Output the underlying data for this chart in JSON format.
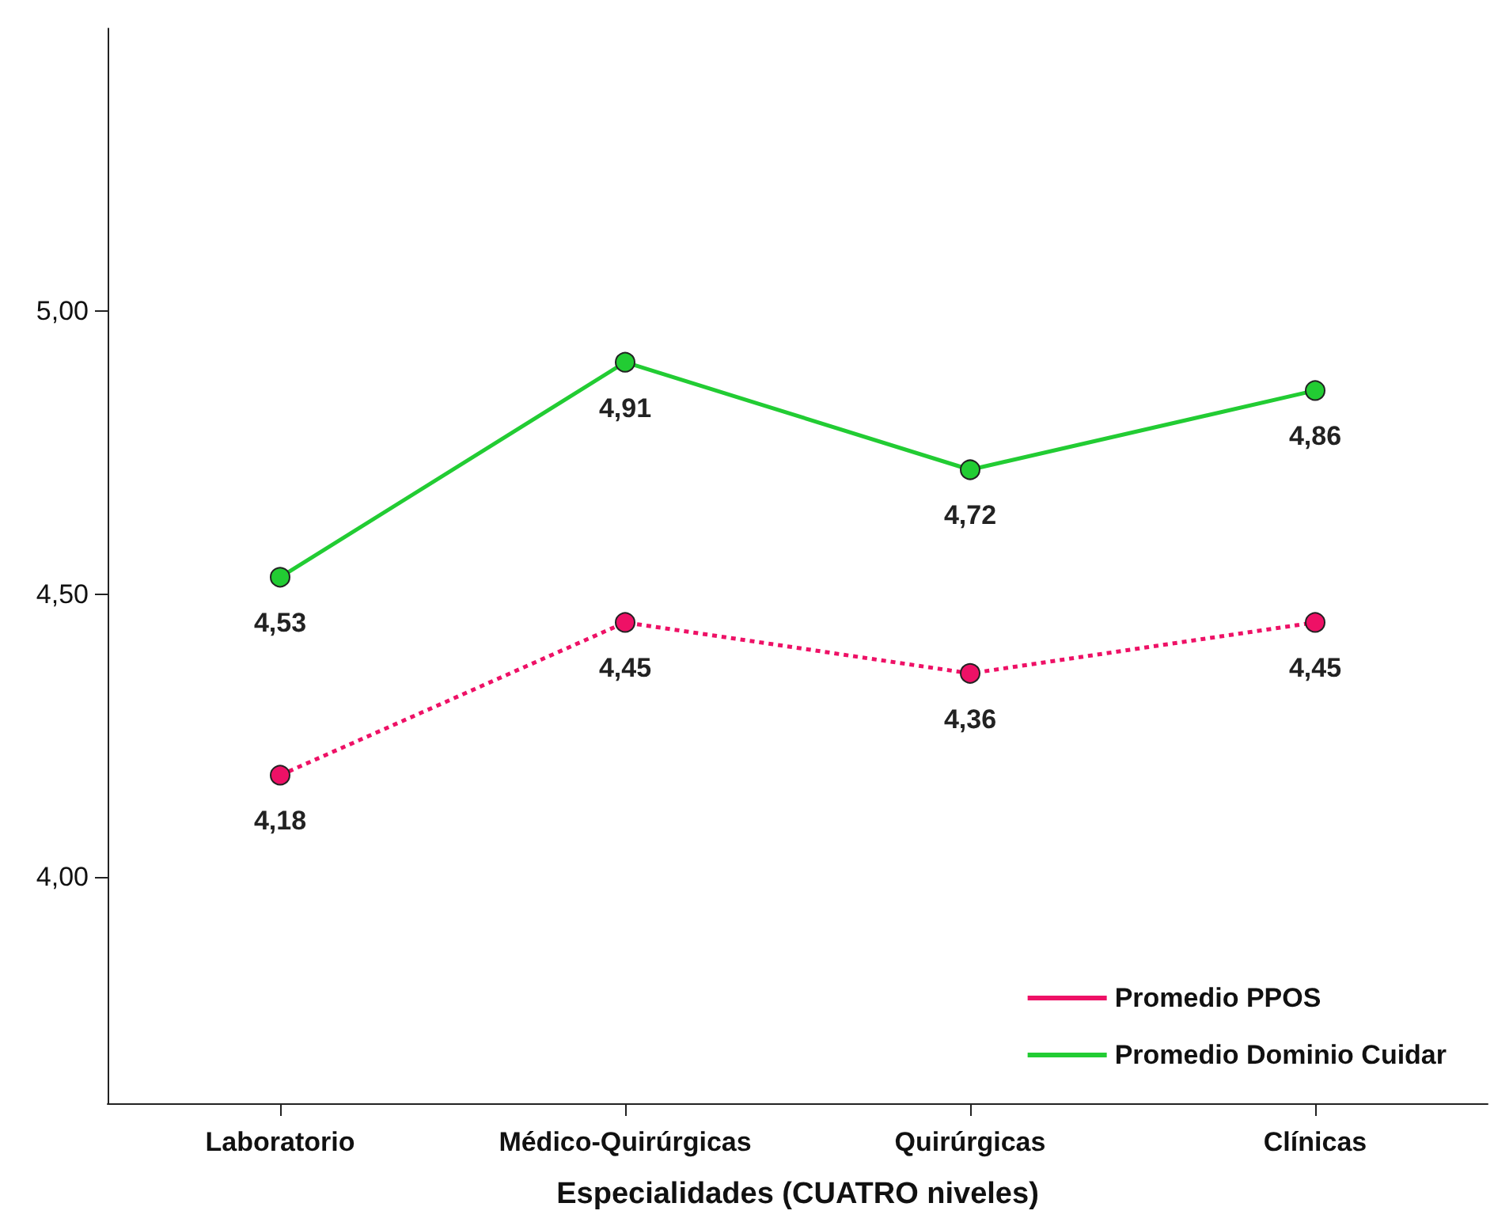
{
  "chart_data": {
    "type": "line",
    "xlabel": "Especialidades (CUATRO niveles)",
    "categories": [
      "Laboratorio",
      "Médico-Quirúrgicas",
      "Quirúrgicas",
      "Clínicas"
    ],
    "series": [
      {
        "name": "Promedio PPOS",
        "color": "#ee1166",
        "values": [
          4.18,
          4.45,
          4.36,
          4.45
        ],
        "value_labels": [
          "4,18",
          "4,45",
          "4,36",
          "4,45"
        ],
        "line_style": "dotted"
      },
      {
        "name": "Promedio Dominio Cuidar",
        "color": "#22cc33",
        "values": [
          4.53,
          4.91,
          4.72,
          4.86
        ],
        "value_labels": [
          "4,53",
          "4,91",
          "4,72",
          "4,86"
        ],
        "line_style": "solid"
      }
    ],
    "ylim": [
      3.6,
      5.5
    ],
    "yticks": [
      {
        "value": 4,
        "label": "4,00"
      },
      {
        "value": 4.5,
        "label": "4,50"
      },
      {
        "value": 5,
        "label": "5,00"
      }
    ],
    "grid": false,
    "legend": "bottom right",
    "marker": "circle"
  }
}
